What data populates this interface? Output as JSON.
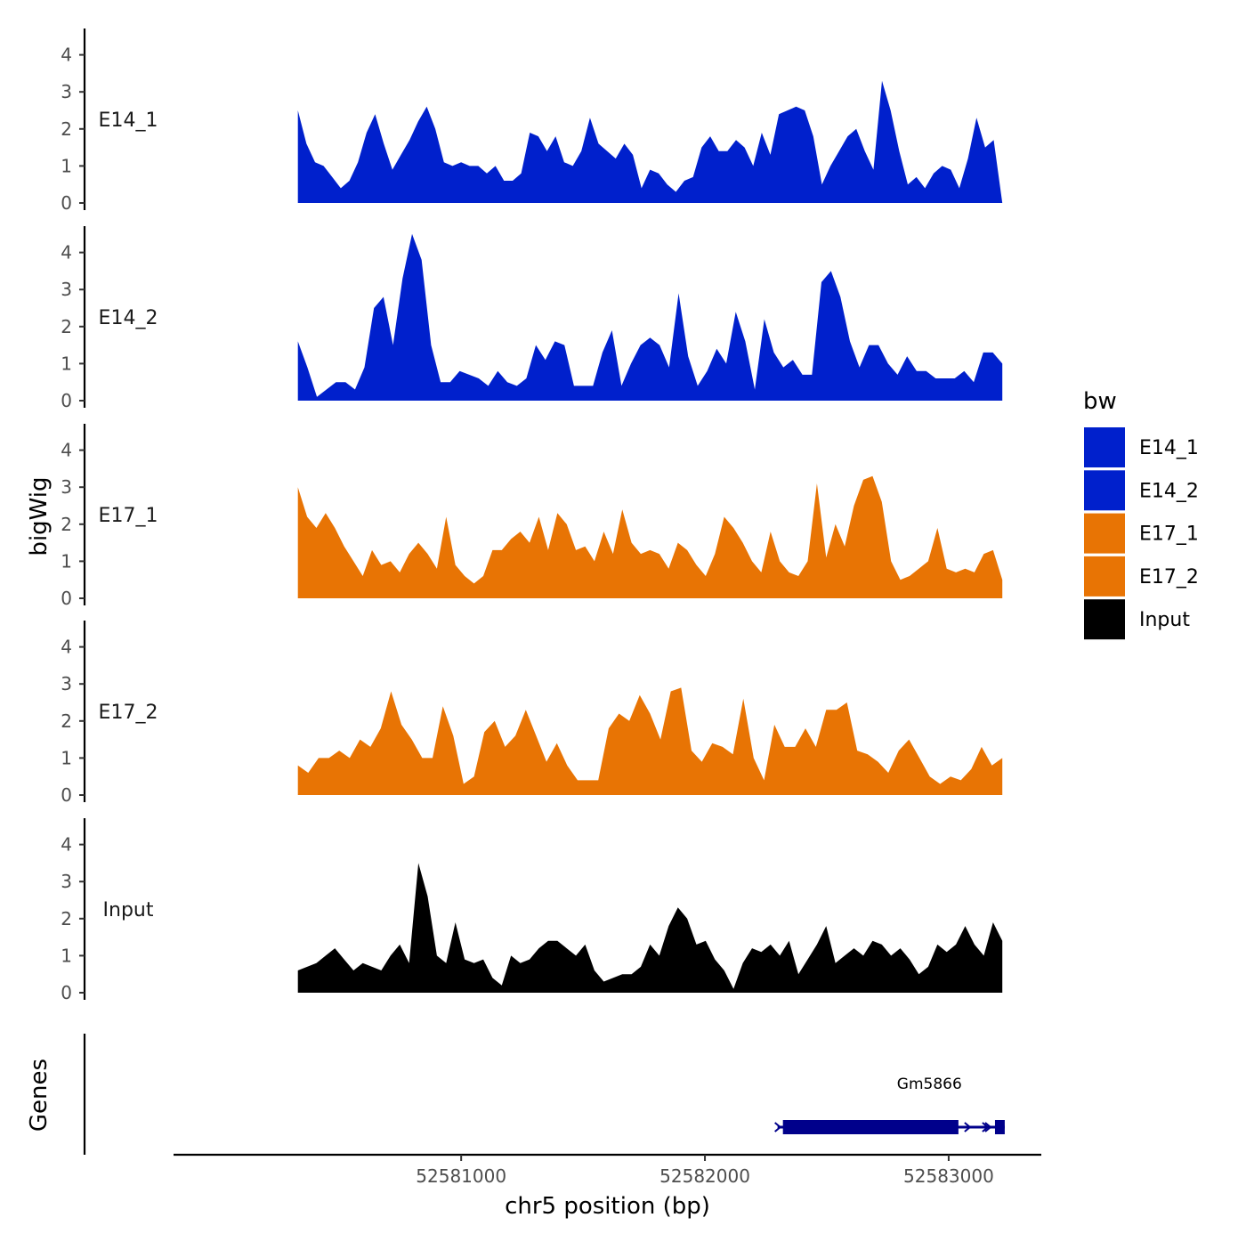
{
  "chart_data": {
    "type": "area",
    "ylabel": "bigWig",
    "xlabel": "chr5 position (bp)",
    "gene_track_label": "Genes",
    "x_range": [
      52580330,
      52583220
    ],
    "x_axis_limits": [
      52579820,
      52583380
    ],
    "x_ticks": [
      52581000,
      52582000,
      52583000
    ],
    "ylim": [
      0,
      4.7
    ],
    "y_ticks": [
      0,
      1,
      2,
      3,
      4
    ],
    "legend": {
      "title": "bw",
      "position": "right",
      "entries": [
        {
          "name": "E14_1",
          "color": "#0020CC"
        },
        {
          "name": "E14_2",
          "color": "#0020CC"
        },
        {
          "name": "E17_1",
          "color": "#E87404"
        },
        {
          "name": "E17_2",
          "color": "#E87404"
        },
        {
          "name": "Input",
          "color": "#000000"
        }
      ]
    },
    "series": [
      {
        "name": "E14_1",
        "color": "#0020CC",
        "values": [
          2.5,
          1.6,
          1.1,
          1.0,
          0.7,
          0.4,
          0.6,
          1.1,
          1.9,
          2.4,
          1.6,
          0.9,
          1.3,
          1.7,
          2.2,
          2.6,
          2.0,
          1.1,
          1.0,
          1.1,
          1.0,
          1.0,
          0.8,
          1.0,
          0.6,
          0.6,
          0.8,
          1.9,
          1.8,
          1.4,
          1.8,
          1.1,
          1.0,
          1.4,
          2.3,
          1.6,
          1.4,
          1.2,
          1.6,
          1.3,
          0.4,
          0.9,
          0.8,
          0.5,
          0.3,
          0.6,
          0.7,
          1.5,
          1.8,
          1.4,
          1.4,
          1.7,
          1.5,
          1.0,
          1.9,
          1.3,
          2.4,
          2.5,
          2.6,
          2.5,
          1.8,
          0.5,
          1.0,
          1.4,
          1.8,
          2.0,
          1.4,
          0.9,
          3.3,
          2.5,
          1.4,
          0.5,
          0.7,
          0.4,
          0.8,
          1.0,
          0.9,
          0.4,
          1.2,
          2.3,
          1.5,
          1.7,
          0.0
        ]
      },
      {
        "name": "E14_2",
        "color": "#0020CC",
        "values": [
          1.6,
          0.9,
          0.1,
          0.3,
          0.5,
          0.5,
          0.3,
          0.9,
          2.5,
          2.8,
          1.5,
          3.3,
          4.5,
          3.8,
          1.5,
          0.5,
          0.5,
          0.8,
          0.7,
          0.6,
          0.4,
          0.8,
          0.5,
          0.4,
          0.6,
          1.5,
          1.1,
          1.6,
          1.5,
          0.4,
          0.4,
          0.4,
          1.3,
          1.9,
          0.4,
          1.0,
          1.5,
          1.7,
          1.5,
          0.9,
          2.9,
          1.2,
          0.4,
          0.8,
          1.4,
          1.0,
          2.4,
          1.6,
          0.3,
          2.2,
          1.3,
          0.9,
          1.1,
          0.7,
          0.7,
          3.2,
          3.5,
          2.8,
          1.6,
          0.9,
          1.5,
          1.5,
          1.0,
          0.7,
          1.2,
          0.8,
          0.8,
          0.6,
          0.6,
          0.6,
          0.8,
          0.5,
          1.3,
          1.3,
          1.0
        ]
      },
      {
        "name": "E17_1",
        "color": "#E87404",
        "values": [
          3.0,
          2.2,
          1.9,
          2.3,
          1.9,
          1.4,
          1.0,
          0.6,
          1.3,
          0.9,
          1.0,
          0.7,
          1.2,
          1.5,
          1.2,
          0.8,
          2.2,
          0.9,
          0.6,
          0.4,
          0.6,
          1.3,
          1.3,
          1.6,
          1.8,
          1.5,
          2.2,
          1.3,
          2.3,
          2.0,
          1.3,
          1.4,
          1.0,
          1.8,
          1.2,
          2.4,
          1.5,
          1.2,
          1.3,
          1.2,
          0.8,
          1.5,
          1.3,
          0.9,
          0.6,
          1.2,
          2.2,
          1.9,
          1.5,
          1.0,
          0.7,
          1.8,
          1.0,
          0.7,
          0.6,
          1.0,
          3.1,
          1.1,
          2.0,
          1.4,
          2.5,
          3.2,
          3.3,
          2.6,
          1.0,
          0.5,
          0.6,
          0.8,
          1.0,
          1.9,
          0.8,
          0.7,
          0.8,
          0.7,
          1.2,
          1.3,
          0.5
        ]
      },
      {
        "name": "E17_2",
        "color": "#E87404",
        "values": [
          0.8,
          0.6,
          1.0,
          1.0,
          1.2,
          1.0,
          1.5,
          1.3,
          1.8,
          2.8,
          1.9,
          1.5,
          1.0,
          1.0,
          2.4,
          1.6,
          0.3,
          0.5,
          1.7,
          2.0,
          1.3,
          1.6,
          2.3,
          1.6,
          0.9,
          1.4,
          0.8,
          0.4,
          0.4,
          0.4,
          1.8,
          2.2,
          2.0,
          2.7,
          2.2,
          1.5,
          2.8,
          2.9,
          1.2,
          0.9,
          1.4,
          1.3,
          1.1,
          2.6,
          1.0,
          0.4,
          1.9,
          1.3,
          1.3,
          1.8,
          1.3,
          2.3,
          2.3,
          2.5,
          1.2,
          1.1,
          0.9,
          0.6,
          1.2,
          1.5,
          1.0,
          0.5,
          0.3,
          0.5,
          0.4,
          0.7,
          1.3,
          0.8,
          1.0
        ]
      },
      {
        "name": "Input",
        "color": "#000000",
        "values": [
          0.6,
          0.7,
          0.8,
          1.0,
          1.2,
          0.9,
          0.6,
          0.8,
          0.7,
          0.6,
          1.0,
          1.3,
          0.8,
          3.5,
          2.6,
          1.0,
          0.8,
          1.9,
          0.9,
          0.8,
          0.9,
          0.4,
          0.2,
          1.0,
          0.8,
          0.9,
          1.2,
          1.4,
          1.4,
          1.2,
          1.0,
          1.3,
          0.6,
          0.3,
          0.4,
          0.5,
          0.5,
          0.7,
          1.3,
          1.0,
          1.8,
          2.3,
          2.0,
          1.3,
          1.4,
          0.9,
          0.6,
          0.1,
          0.8,
          1.2,
          1.1,
          1.3,
          1.0,
          1.4,
          0.5,
          0.9,
          1.3,
          1.8,
          0.8,
          1.0,
          1.2,
          1.0,
          1.4,
          1.3,
          1.0,
          1.2,
          0.9,
          0.5,
          0.7,
          1.3,
          1.1,
          1.3,
          1.8,
          1.3,
          1.0,
          1.9,
          1.4
        ]
      }
    ],
    "gene": {
      "name": "Gm5866",
      "start": 52582320,
      "end": 52583230,
      "thick_end": 52583040,
      "end_block_start": 52583190,
      "strand": "+",
      "color": "#00008B"
    }
  }
}
